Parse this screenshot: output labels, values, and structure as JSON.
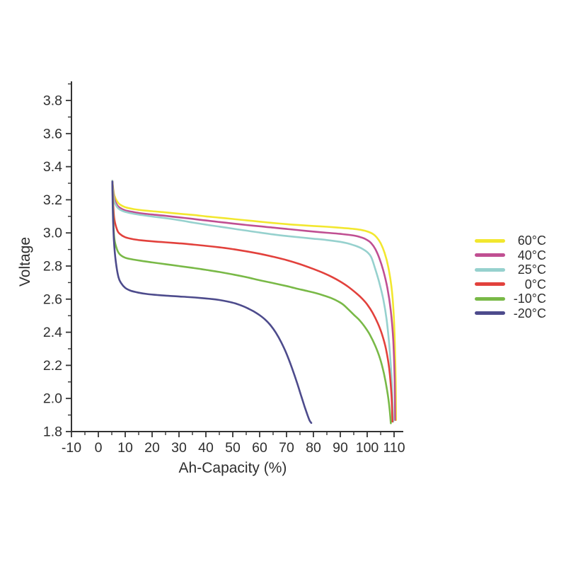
{
  "page": {
    "background": "#ffffff"
  },
  "axis": {
    "color": "#333333",
    "text_color": "#2e2e2e"
  },
  "chart_data": {
    "type": "line",
    "title": "",
    "xlabel": "Ah-Capacity (%)",
    "ylabel": "Voltage",
    "xlim": [
      -10,
      110
    ],
    "ylim": [
      1.8,
      3.8
    ],
    "grid": false,
    "legend_position": "right-outside",
    "x_ticks": [
      {
        "value": -10,
        "label": "-10"
      },
      {
        "value": 0,
        "label": "0"
      },
      {
        "value": 10,
        "label": "10"
      },
      {
        "value": 20,
        "label": "20"
      },
      {
        "value": 30,
        "label": "30"
      },
      {
        "value": 40,
        "label": "40"
      },
      {
        "value": 50,
        "label": "50"
      },
      {
        "value": 60,
        "label": "60"
      },
      {
        "value": 70,
        "label": "70"
      },
      {
        "value": 80,
        "label": "80"
      },
      {
        "value": 90,
        "label": "90"
      },
      {
        "value": 100,
        "label": "100"
      },
      {
        "value": 110,
        "label": "110"
      }
    ],
    "x_minor_tick_step": 5,
    "y_ticks": [
      {
        "value": 1.8,
        "label": "1.8"
      },
      {
        "value": 2.0,
        "label": "2.0"
      },
      {
        "value": 2.2,
        "label": "2.2"
      },
      {
        "value": 2.4,
        "label": "2.4"
      },
      {
        "value": 2.6,
        "label": "2.6"
      },
      {
        "value": 2.8,
        "label": "2.8"
      },
      {
        "value": 3.0,
        "label": "3.0"
      },
      {
        "value": 3.2,
        "label": "3.2"
      },
      {
        "value": 3.4,
        "label": "3.4"
      },
      {
        "value": 3.6,
        "label": "3.6"
      },
      {
        "value": 3.8,
        "label": "3.8"
      }
    ],
    "y_minor_tick_step": 0.1,
    "series": [
      {
        "name": "60°C",
        "color": "#f2e72f",
        "points": [
          [
            5.2,
            3.315
          ],
          [
            5.6,
            3.26
          ],
          [
            6,
            3.225
          ],
          [
            7,
            3.19
          ],
          [
            8,
            3.172
          ],
          [
            10,
            3.155
          ],
          [
            13,
            3.144
          ],
          [
            16,
            3.137
          ],
          [
            20,
            3.131
          ],
          [
            25,
            3.124
          ],
          [
            30,
            3.116
          ],
          [
            35,
            3.109
          ],
          [
            40,
            3.1
          ],
          [
            45,
            3.092
          ],
          [
            50,
            3.084
          ],
          [
            55,
            3.076
          ],
          [
            60,
            3.068
          ],
          [
            65,
            3.06
          ],
          [
            70,
            3.053
          ],
          [
            75,
            3.047
          ],
          [
            80,
            3.042
          ],
          [
            85,
            3.037
          ],
          [
            90,
            3.031
          ],
          [
            95,
            3.024
          ],
          [
            98,
            3.017
          ],
          [
            100,
            3.009
          ],
          [
            102,
            2.995
          ],
          [
            103.5,
            2.974
          ],
          [
            105,
            2.938
          ],
          [
            106.5,
            2.878
          ],
          [
            107.8,
            2.798
          ],
          [
            109,
            2.678
          ],
          [
            109.8,
            2.528
          ],
          [
            110.3,
            2.328
          ],
          [
            110.6,
            2.1
          ],
          [
            110.7,
            1.87
          ]
        ]
      },
      {
        "name": "40°C",
        "color": "#c04f92",
        "points": [
          [
            5.2,
            3.315
          ],
          [
            5.6,
            3.245
          ],
          [
            6,
            3.203
          ],
          [
            7,
            3.168
          ],
          [
            8,
            3.152
          ],
          [
            10,
            3.136
          ],
          [
            13,
            3.126
          ],
          [
            16,
            3.118
          ],
          [
            20,
            3.111
          ],
          [
            25,
            3.103
          ],
          [
            30,
            3.094
          ],
          [
            35,
            3.085
          ],
          [
            40,
            3.075
          ],
          [
            45,
            3.066
          ],
          [
            50,
            3.057
          ],
          [
            55,
            3.048
          ],
          [
            60,
            3.04
          ],
          [
            65,
            3.032
          ],
          [
            70,
            3.024
          ],
          [
            75,
            3.016
          ],
          [
            80,
            3.008
          ],
          [
            85,
            3.001
          ],
          [
            90,
            2.994
          ],
          [
            95,
            2.984
          ],
          [
            98,
            2.972
          ],
          [
            100,
            2.957
          ],
          [
            101.5,
            2.938
          ],
          [
            103,
            2.903
          ],
          [
            104.5,
            2.848
          ],
          [
            106,
            2.772
          ],
          [
            107.5,
            2.668
          ],
          [
            108.8,
            2.528
          ],
          [
            109.7,
            2.348
          ],
          [
            110.2,
            2.12
          ],
          [
            110.4,
            1.87
          ]
        ]
      },
      {
        "name": "25°C",
        "color": "#96d1ce",
        "points": [
          [
            5.2,
            3.315
          ],
          [
            5.6,
            3.225
          ],
          [
            6,
            3.186
          ],
          [
            7,
            3.156
          ],
          [
            8,
            3.141
          ],
          [
            10,
            3.127
          ],
          [
            13,
            3.116
          ],
          [
            16,
            3.108
          ],
          [
            20,
            3.099
          ],
          [
            25,
            3.089
          ],
          [
            30,
            3.077
          ],
          [
            35,
            3.063
          ],
          [
            40,
            3.05
          ],
          [
            45,
            3.038
          ],
          [
            50,
            3.026
          ],
          [
            55,
            3.014
          ],
          [
            60,
            3.002
          ],
          [
            65,
            2.991
          ],
          [
            70,
            2.981
          ],
          [
            75,
            2.973
          ],
          [
            80,
            2.965
          ],
          [
            85,
            2.957
          ],
          [
            90,
            2.946
          ],
          [
            93,
            2.936
          ],
          [
            96,
            2.92
          ],
          [
            98,
            2.906
          ],
          [
            100,
            2.884
          ],
          [
            101.5,
            2.854
          ],
          [
            103,
            2.782
          ],
          [
            104.5,
            2.7
          ],
          [
            106,
            2.598
          ],
          [
            107.2,
            2.478
          ],
          [
            108.2,
            2.324
          ],
          [
            109,
            2.14
          ],
          [
            109.5,
            1.952
          ],
          [
            109.7,
            1.86
          ]
        ]
      },
      {
        "name": "0°C",
        "color": "#e2413c",
        "points": [
          [
            5.2,
            3.31
          ],
          [
            5.6,
            3.15
          ],
          [
            6,
            3.078
          ],
          [
            7,
            3.018
          ],
          [
            8,
            2.994
          ],
          [
            10,
            2.974
          ],
          [
            13,
            2.962
          ],
          [
            16,
            2.955
          ],
          [
            20,
            2.949
          ],
          [
            25,
            2.943
          ],
          [
            30,
            2.937
          ],
          [
            35,
            2.93
          ],
          [
            40,
            2.922
          ],
          [
            45,
            2.913
          ],
          [
            50,
            2.902
          ],
          [
            55,
            2.889
          ],
          [
            60,
            2.874
          ],
          [
            65,
            2.856
          ],
          [
            70,
            2.836
          ],
          [
            75,
            2.811
          ],
          [
            80,
            2.782
          ],
          [
            84,
            2.756
          ],
          [
            87,
            2.733
          ],
          [
            90,
            2.706
          ],
          [
            93,
            2.674
          ],
          [
            96,
            2.635
          ],
          [
            98,
            2.605
          ],
          [
            100,
            2.568
          ],
          [
            102,
            2.518
          ],
          [
            104,
            2.452
          ],
          [
            105.5,
            2.388
          ],
          [
            107,
            2.298
          ],
          [
            108.2,
            2.178
          ],
          [
            109,
            2.028
          ],
          [
            109.4,
            1.86
          ]
        ]
      },
      {
        "name": "-10°C",
        "color": "#79b947",
        "points": [
          [
            5.2,
            3.31
          ],
          [
            5.6,
            3.06
          ],
          [
            6,
            2.96
          ],
          [
            7,
            2.898
          ],
          [
            8,
            2.87
          ],
          [
            10,
            2.85
          ],
          [
            13,
            2.839
          ],
          [
            16,
            2.831
          ],
          [
            20,
            2.822
          ],
          [
            25,
            2.811
          ],
          [
            30,
            2.8
          ],
          [
            35,
            2.789
          ],
          [
            40,
            2.777
          ],
          [
            45,
            2.764
          ],
          [
            50,
            2.749
          ],
          [
            55,
            2.733
          ],
          [
            60,
            2.714
          ],
          [
            65,
            2.697
          ],
          [
            70,
            2.679
          ],
          [
            74,
            2.663
          ],
          [
            78,
            2.648
          ],
          [
            81,
            2.636
          ],
          [
            84,
            2.621
          ],
          [
            87,
            2.604
          ],
          [
            89,
            2.588
          ],
          [
            91,
            2.568
          ],
          [
            93,
            2.538
          ],
          [
            95,
            2.506
          ],
          [
            97,
            2.475
          ],
          [
            99,
            2.435
          ],
          [
            101,
            2.385
          ],
          [
            103,
            2.318
          ],
          [
            104.8,
            2.24
          ],
          [
            106.2,
            2.152
          ],
          [
            107.4,
            2.05
          ],
          [
            108.3,
            1.942
          ],
          [
            108.8,
            1.85
          ]
        ]
      },
      {
        "name": "-20°C",
        "color": "#4d4b8c",
        "points": [
          [
            5.2,
            3.31
          ],
          [
            5.4,
            3.13
          ],
          [
            5.8,
            2.955
          ],
          [
            6.5,
            2.825
          ],
          [
            7.5,
            2.732
          ],
          [
            8.5,
            2.696
          ],
          [
            10,
            2.668
          ],
          [
            12,
            2.651
          ],
          [
            15,
            2.639
          ],
          [
            18,
            2.631
          ],
          [
            22,
            2.625
          ],
          [
            26,
            2.62
          ],
          [
            30,
            2.616
          ],
          [
            34,
            2.612
          ],
          [
            38,
            2.607
          ],
          [
            42,
            2.601
          ],
          [
            45,
            2.595
          ],
          [
            48,
            2.586
          ],
          [
            51,
            2.574
          ],
          [
            54,
            2.556
          ],
          [
            56,
            2.541
          ],
          [
            58,
            2.524
          ],
          [
            60,
            2.503
          ],
          [
            62,
            2.477
          ],
          [
            64,
            2.443
          ],
          [
            66,
            2.398
          ],
          [
            68,
            2.34
          ],
          [
            70,
            2.27
          ],
          [
            72,
            2.185
          ],
          [
            74,
            2.09
          ],
          [
            75.5,
            2.013
          ],
          [
            76.8,
            1.947
          ],
          [
            77.8,
            1.9
          ],
          [
            78.6,
            1.866
          ],
          [
            79.2,
            1.852
          ]
        ]
      }
    ]
  }
}
